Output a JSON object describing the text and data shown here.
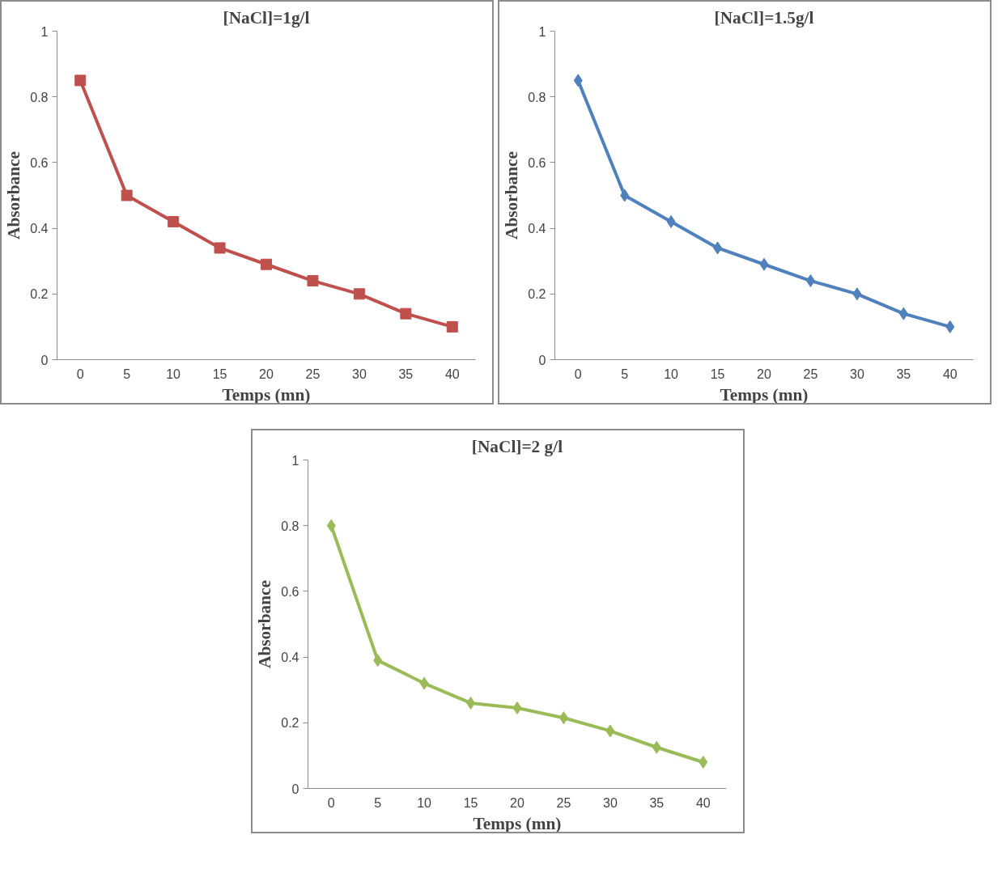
{
  "chart_data": [
    {
      "type": "line",
      "title": "[NaCl]=1g/l",
      "xlabel": "Temps (mn)",
      "ylabel": "Absorbance",
      "categories": [
        "0",
        "5",
        "10",
        "15",
        "20",
        "25",
        "30",
        "35",
        "40"
      ],
      "marker": "square",
      "grid": false,
      "ylim": [
        0,
        1
      ],
      "yticks": [
        0,
        0.2,
        0.4,
        0.6,
        0.8,
        1
      ],
      "series": [
        {
          "color": "#c0504d",
          "values": [
            0.85,
            0.5,
            0.42,
            0.34,
            0.29,
            0.24,
            0.2,
            0.14,
            0.1
          ]
        }
      ]
    },
    {
      "type": "line",
      "title": "[NaCl]=1.5g/l",
      "xlabel": "Temps (mn)",
      "ylabel": "Absorbance",
      "categories": [
        "0",
        "5",
        "10",
        "15",
        "20",
        "25",
        "30",
        "35",
        "40"
      ],
      "marker": "diamond",
      "grid": false,
      "ylim": [
        0,
        1
      ],
      "yticks": [
        0,
        0.2,
        0.4,
        0.6,
        0.8,
        1
      ],
      "series": [
        {
          "color": "#4f81bd",
          "values": [
            0.85,
            0.5,
            0.42,
            0.34,
            0.29,
            0.24,
            0.2,
            0.14,
            0.1
          ]
        }
      ]
    },
    {
      "type": "line",
      "title": "[NaCl]=2 g/l",
      "xlabel": "Temps (mn)",
      "ylabel": "Absorbance",
      "categories": [
        "0",
        "5",
        "10",
        "15",
        "20",
        "25",
        "30",
        "35",
        "40"
      ],
      "marker": "diamond",
      "grid": false,
      "ylim": [
        0,
        1
      ],
      "yticks": [
        0,
        0.2,
        0.4,
        0.6,
        0.8,
        1
      ],
      "series": [
        {
          "color": "#9bbb59",
          "values": [
            0.8,
            0.39,
            0.32,
            0.26,
            0.245,
            0.215,
            0.175,
            0.125,
            0.08
          ]
        }
      ]
    }
  ]
}
